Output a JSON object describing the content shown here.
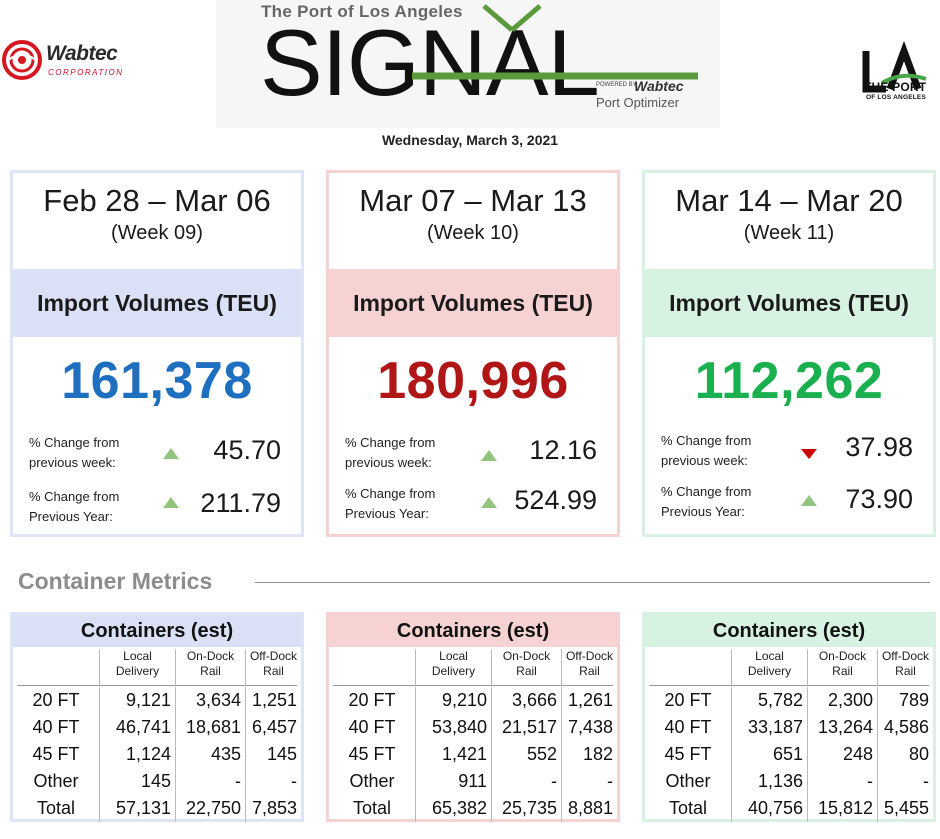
{
  "header": {
    "wabtec_name": "Wabtec",
    "wabtec_sub": "CORPORATION",
    "signal_top": "The Port of Los Angeles",
    "signal_word": "SIGNAL",
    "powered_by": "POWERED BY",
    "powered_wabtec": "Wabtec",
    "port_optimizer": "Port Optimizer",
    "la_line1": "THE PORT",
    "la_line2": "OF LOS ANGELES",
    "date": "Wednesday, March 3, 2021"
  },
  "colors": {
    "blue_border": "#dfe4f7",
    "blue_band": "#dae0f5",
    "blue_num": "#1f6fc0",
    "red_border": "#f6d2d2",
    "red_band": "#f6d3d2",
    "red_num": "#b01616",
    "green_border": "#d7f1e2",
    "green_band": "#d8f2e2",
    "green_num": "#1bb04f"
  },
  "weeks": [
    {
      "range": "Feb 28 – Mar 06",
      "week": "(Week 09)",
      "band_label": "Import Volumes (TEU)",
      "volume": "161,378",
      "pct_week_label_1": "% Change from",
      "pct_week_label_2": "previous week:",
      "pct_week_dir": "up",
      "pct_week": "45.70",
      "pct_year_label_1": "% Change from",
      "pct_year_label_2": "Previous Year:",
      "pct_year_dir": "up",
      "pct_year": "211.79"
    },
    {
      "range": "Mar 07 – Mar 13",
      "week": "(Week 10)",
      "band_label": "Import Volumes (TEU)",
      "volume": "180,996",
      "pct_week_label_1": "% Change from",
      "pct_week_label_2": "previous week:",
      "pct_week_dir": "up",
      "pct_week": "12.16",
      "pct_year_label_1": "% Change from",
      "pct_year_label_2": "Previous Year:",
      "pct_year_dir": "up",
      "pct_year": "524.99"
    },
    {
      "range": "Mar 14 – Mar 20",
      "week": "(Week 11)",
      "band_label": "Import Volumes (TEU)",
      "volume": "112,262",
      "pct_week_label_1": "% Change from",
      "pct_week_label_2": "previous week:",
      "pct_week_dir": "down",
      "pct_week": "37.98",
      "pct_year_label_1": "% Change from",
      "pct_year_label_2": "Previous Year:",
      "pct_year_dir": "up",
      "pct_year": "73.90"
    }
  ],
  "container_metrics": {
    "heading": "Container Metrics",
    "title": "Containers (est)",
    "col_headers": [
      [
        "Local",
        "Delivery"
      ],
      [
        "On-Dock",
        "Rail"
      ],
      [
        "Off-Dock",
        "Rail"
      ]
    ],
    "tables": [
      {
        "rows": [
          [
            "20 FT",
            "9,121",
            "3,634",
            "1,251"
          ],
          [
            "40 FT",
            "46,741",
            "18,681",
            "6,457"
          ],
          [
            "45 FT",
            "1,124",
            "435",
            "145"
          ],
          [
            "Other",
            "145",
            "-",
            "-"
          ],
          [
            "Total",
            "57,131",
            "22,750",
            "7,853"
          ]
        ]
      },
      {
        "rows": [
          [
            "20 FT",
            "9,210",
            "3,666",
            "1,261"
          ],
          [
            "40 FT",
            "53,840",
            "21,517",
            "7,438"
          ],
          [
            "45 FT",
            "1,421",
            "552",
            "182"
          ],
          [
            "Other",
            "911",
            "-",
            "-"
          ],
          [
            "Total",
            "65,382",
            "25,735",
            "8,881"
          ]
        ]
      },
      {
        "rows": [
          [
            "20 FT",
            "5,782",
            "2,300",
            "789"
          ],
          [
            "40 FT",
            "33,187",
            "13,264",
            "4,586"
          ],
          [
            "45 FT",
            "651",
            "248",
            "80"
          ],
          [
            "Other",
            "1,136",
            "-",
            "-"
          ],
          [
            "Total",
            "40,756",
            "15,812",
            "5,455"
          ]
        ]
      }
    ]
  }
}
